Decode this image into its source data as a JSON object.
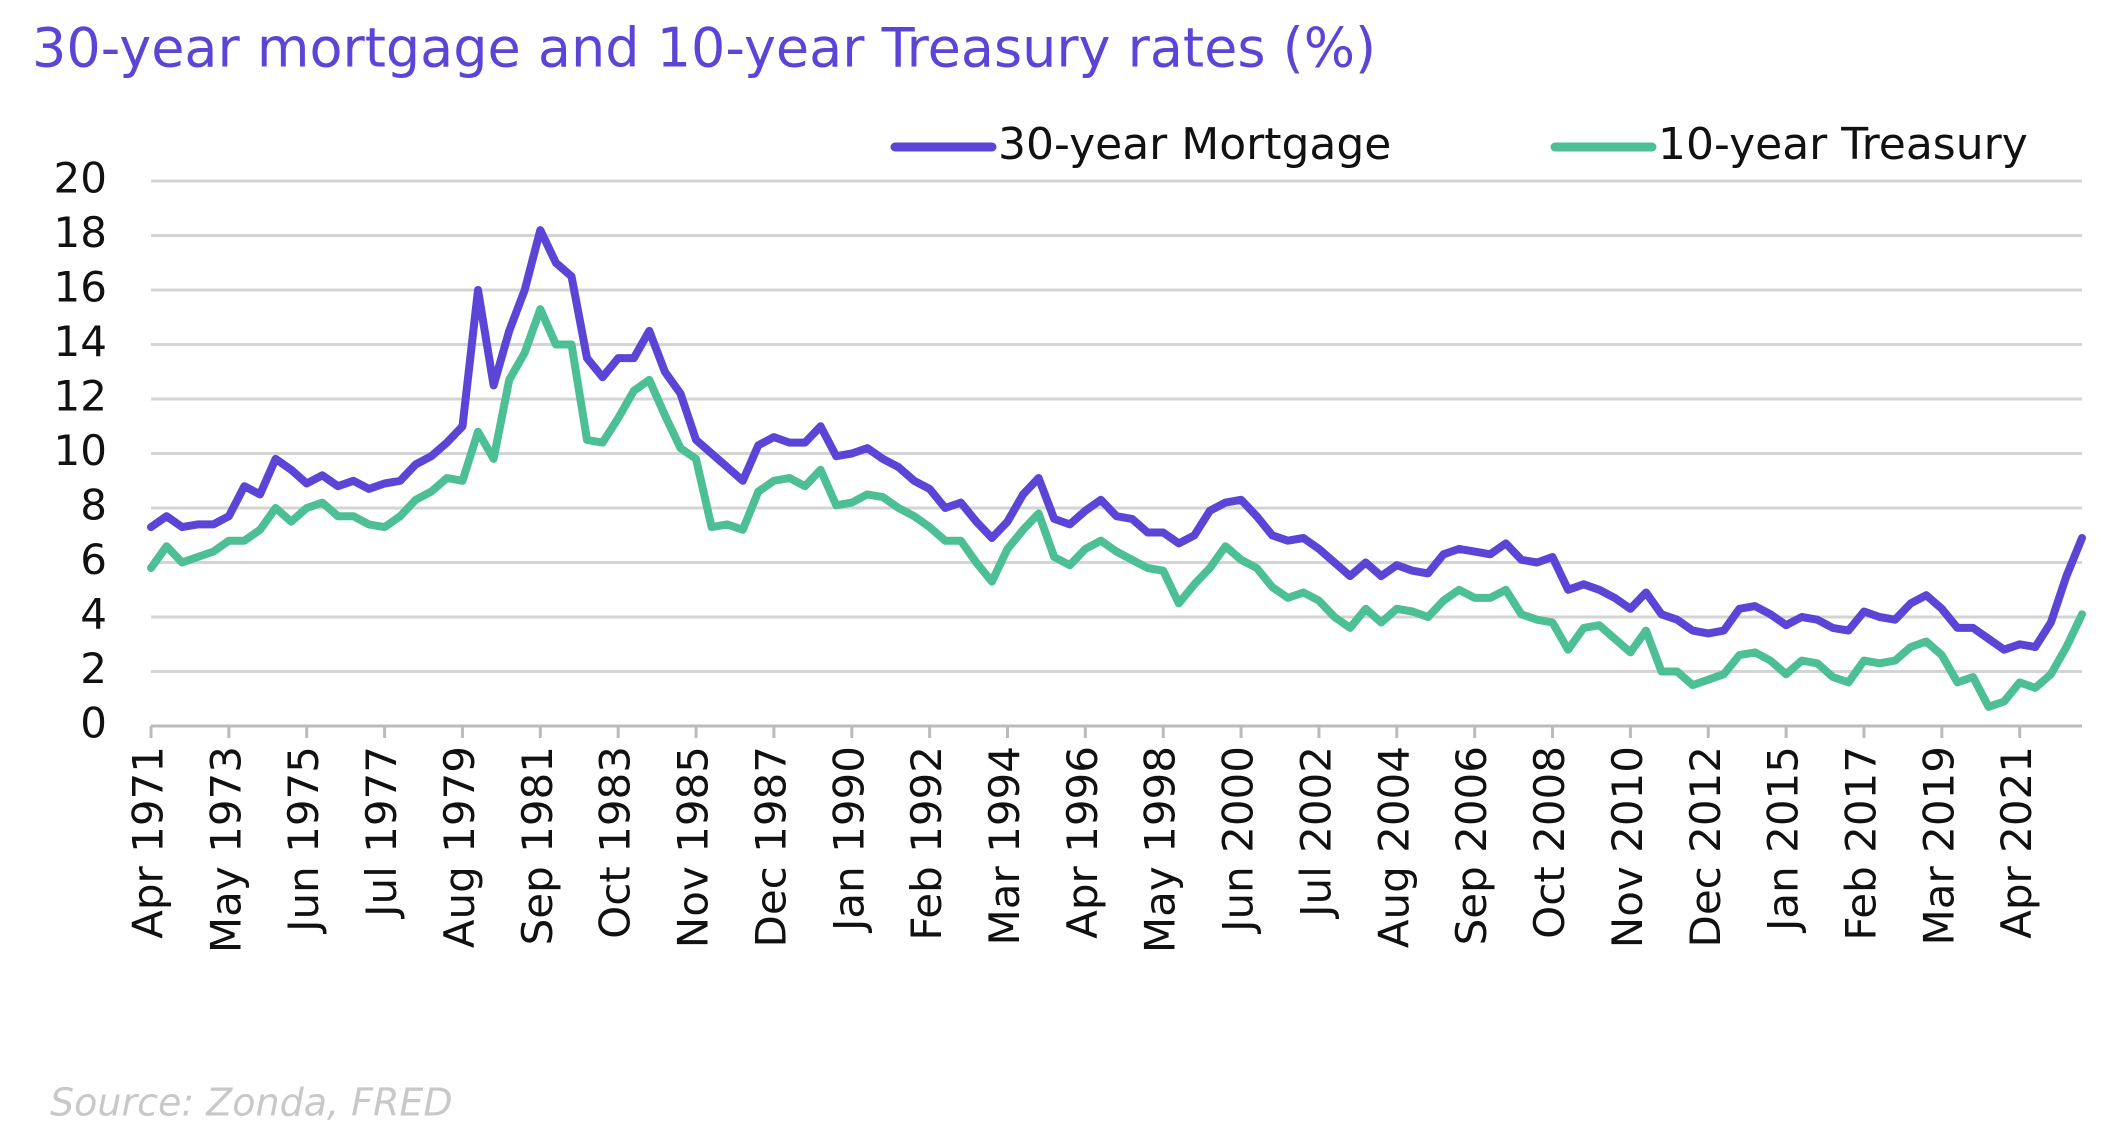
{
  "chart_data": {
    "type": "line",
    "title": "30-year mortgage and 10-year Treasury rates (%)",
    "source": "Source: Zonda, FRED",
    "categories": [
      "Apr 1971",
      null,
      null,
      null,
      null,
      "May 1973",
      null,
      null,
      null,
      null,
      "Jun 1975",
      null,
      null,
      null,
      null,
      "Jul 1977",
      null,
      null,
      null,
      null,
      "Aug 1979",
      null,
      null,
      null,
      null,
      "Sep 1981",
      null,
      null,
      null,
      null,
      "Oct 1983",
      null,
      null,
      null,
      null,
      "Nov 1985",
      null,
      null,
      null,
      null,
      "Dec 1987",
      null,
      null,
      null,
      null,
      "Jan 1990",
      null,
      null,
      null,
      null,
      "Feb 1992",
      null,
      null,
      null,
      null,
      "Mar 1994",
      null,
      null,
      null,
      null,
      "Apr 1996",
      null,
      null,
      null,
      null,
      "May 1998",
      null,
      null,
      null,
      null,
      "Jun 2000",
      null,
      null,
      null,
      null,
      "Jul 2002",
      null,
      null,
      null,
      null,
      "Aug 2004",
      null,
      null,
      null,
      null,
      "Sep 2006",
      null,
      null,
      null,
      null,
      "Oct 2008",
      null,
      null,
      null,
      null,
      "Nov 2010",
      null,
      null,
      null,
      null,
      "Dec 2012",
      null,
      null,
      null,
      null,
      "Jan 2015",
      null,
      null,
      null,
      null,
      "Feb 2017",
      null,
      null,
      null,
      null,
      "Mar 2019",
      null,
      null,
      null,
      null,
      "Apr 2021",
      null,
      null,
      null,
      null
    ],
    "series": [
      {
        "name": "30-year Mortgage",
        "color": "#5a45d6",
        "values": [
          7.3,
          7.7,
          7.3,
          7.4,
          7.4,
          7.7,
          8.8,
          8.5,
          9.8,
          9.4,
          8.9,
          9.2,
          8.8,
          9.0,
          8.7,
          8.9,
          9.0,
          9.6,
          9.9,
          10.4,
          11.0,
          16.0,
          12.5,
          14.5,
          16.0,
          18.2,
          17.0,
          16.5,
          13.5,
          12.8,
          13.5,
          13.5,
          14.5,
          13.0,
          12.2,
          10.5,
          10.0,
          9.5,
          9.0,
          10.3,
          10.6,
          10.4,
          10.4,
          11.0,
          9.9,
          10.0,
          10.2,
          9.8,
          9.5,
          9.0,
          8.7,
          8.0,
          8.2,
          7.5,
          6.9,
          7.5,
          8.5,
          9.1,
          7.6,
          7.4,
          7.9,
          8.3,
          7.7,
          7.6,
          7.1,
          7.1,
          6.7,
          7.0,
          7.9,
          8.2,
          8.3,
          7.7,
          7.0,
          6.8,
          6.9,
          6.5,
          6.0,
          5.5,
          6.0,
          5.5,
          5.9,
          5.7,
          5.6,
          6.3,
          6.5,
          6.4,
          6.3,
          6.7,
          6.1,
          6.0,
          6.2,
          5.0,
          5.2,
          5.0,
          4.7,
          4.3,
          4.9,
          4.1,
          3.9,
          3.5,
          3.4,
          3.5,
          4.3,
          4.4,
          4.1,
          3.7,
          4.0,
          3.9,
          3.6,
          3.5,
          4.2,
          4.0,
          3.9,
          4.5,
          4.8,
          4.3,
          3.6,
          3.6,
          3.2,
          2.8,
          3.0,
          2.9,
          3.8,
          5.5,
          6.9
        ]
      },
      {
        "name": "10-year Treasury",
        "color": "#4dbf94",
        "values": [
          5.8,
          6.6,
          6.0,
          6.2,
          6.4,
          6.8,
          6.8,
          7.2,
          8.0,
          7.5,
          8.0,
          8.2,
          7.7,
          7.7,
          7.4,
          7.3,
          7.7,
          8.3,
          8.6,
          9.1,
          9.0,
          10.8,
          9.8,
          12.7,
          13.7,
          15.3,
          14.0,
          14.0,
          10.5,
          10.4,
          11.3,
          12.3,
          12.7,
          11.4,
          10.2,
          9.8,
          7.3,
          7.4,
          7.2,
          8.6,
          9.0,
          9.1,
          8.8,
          9.4,
          8.1,
          8.2,
          8.5,
          8.4,
          8.0,
          7.7,
          7.3,
          6.8,
          6.8,
          6.0,
          5.3,
          6.5,
          7.2,
          7.8,
          6.2,
          5.9,
          6.5,
          6.8,
          6.4,
          6.1,
          5.8,
          5.7,
          4.5,
          5.2,
          5.8,
          6.6,
          6.1,
          5.8,
          5.1,
          4.7,
          4.9,
          4.6,
          4.0,
          3.6,
          4.3,
          3.8,
          4.3,
          4.2,
          4.0,
          4.6,
          5.0,
          4.7,
          4.7,
          5.0,
          4.1,
          3.9,
          3.8,
          2.8,
          3.6,
          3.7,
          3.2,
          2.7,
          3.5,
          2.0,
          2.0,
          1.5,
          1.7,
          1.9,
          2.6,
          2.7,
          2.4,
          1.9,
          2.4,
          2.3,
          1.8,
          1.6,
          2.4,
          2.3,
          2.4,
          2.9,
          3.1,
          2.6,
          1.6,
          1.8,
          0.7,
          0.9,
          1.6,
          1.4,
          1.9,
          2.9,
          4.1
        ]
      }
    ],
    "ylim": [
      0,
      20
    ],
    "yticks": [
      0,
      2,
      4,
      6,
      8,
      10,
      12,
      14,
      16,
      18,
      20
    ],
    "grid": true,
    "legend": "top-right"
  }
}
